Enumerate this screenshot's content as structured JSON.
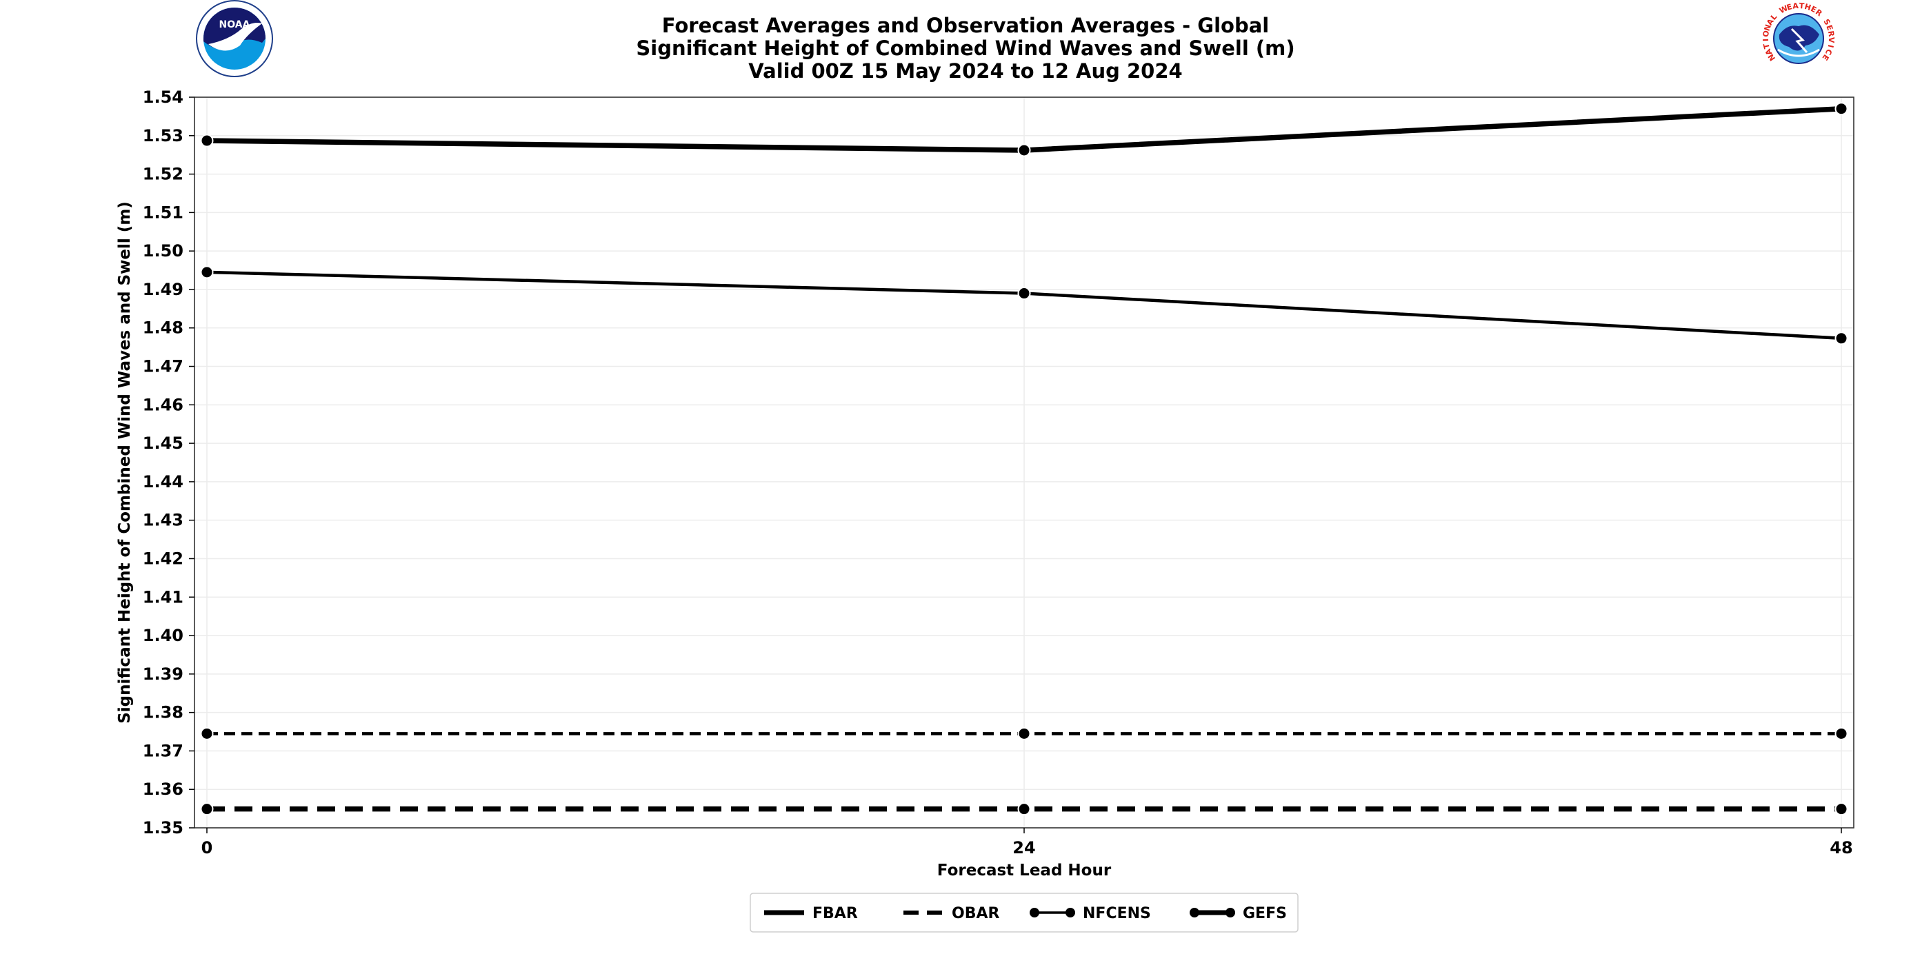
{
  "header": {
    "title_lines": [
      "Forecast Averages and Observation Averages - Global",
      "Significant Height of Combined Wind Waves and Swell (m)",
      "Valid 00Z 15 May 2024 to 12 Aug 2024"
    ],
    "left_logo": {
      "icon": "noaa-logo",
      "text": "NOAA"
    },
    "right_logo": {
      "icon": "nws-logo",
      "text": "NATIONAL WEATHER SERVICE"
    }
  },
  "chart_data": {
    "type": "line",
    "title": "Forecast Averages and Observation Averages - Global\nSignificant Height of Combined Wind Waves and Swell (m)\nValid 00Z 15 May 2024 to 12 Aug 2024",
    "xlabel": "Forecast Lead Hour",
    "ylabel": "Significant Height of Combined Wind Waves and Swell (m)",
    "x": [
      0,
      24,
      48
    ],
    "xticks": [
      "0",
      "24",
      "48"
    ],
    "ylim": [
      1.35,
      1.54
    ],
    "yticks": [
      "1.35",
      "1.36",
      "1.37",
      "1.38",
      "1.39",
      "1.40",
      "1.41",
      "1.42",
      "1.43",
      "1.44",
      "1.45",
      "1.46",
      "1.47",
      "1.48",
      "1.49",
      "1.50",
      "1.51",
      "1.52",
      "1.53",
      "1.54"
    ],
    "grid": true,
    "line_color": "#000000",
    "series": [
      {
        "model": "NFCENS",
        "stat": "FBAR",
        "values": [
          1.4945,
          1.489,
          1.4773
        ]
      },
      {
        "model": "NFCENS",
        "stat": "OBAR",
        "values": [
          1.3745,
          1.3745,
          1.3745
        ]
      },
      {
        "model": "GEFS",
        "stat": "FBAR",
        "values": [
          1.5287,
          1.5262,
          1.537
        ]
      },
      {
        "model": "GEFS",
        "stat": "OBAR",
        "values": [
          1.3549,
          1.3549,
          1.3549
        ]
      }
    ],
    "legend": {
      "placement": "bottom-center",
      "entries": [
        {
          "label": "FBAR",
          "style": "solid"
        },
        {
          "label": "OBAR",
          "style": "dashed"
        },
        {
          "label": "NFCENS",
          "style": "thin-marker"
        },
        {
          "label": "GEFS",
          "style": "thick-marker"
        }
      ]
    }
  }
}
